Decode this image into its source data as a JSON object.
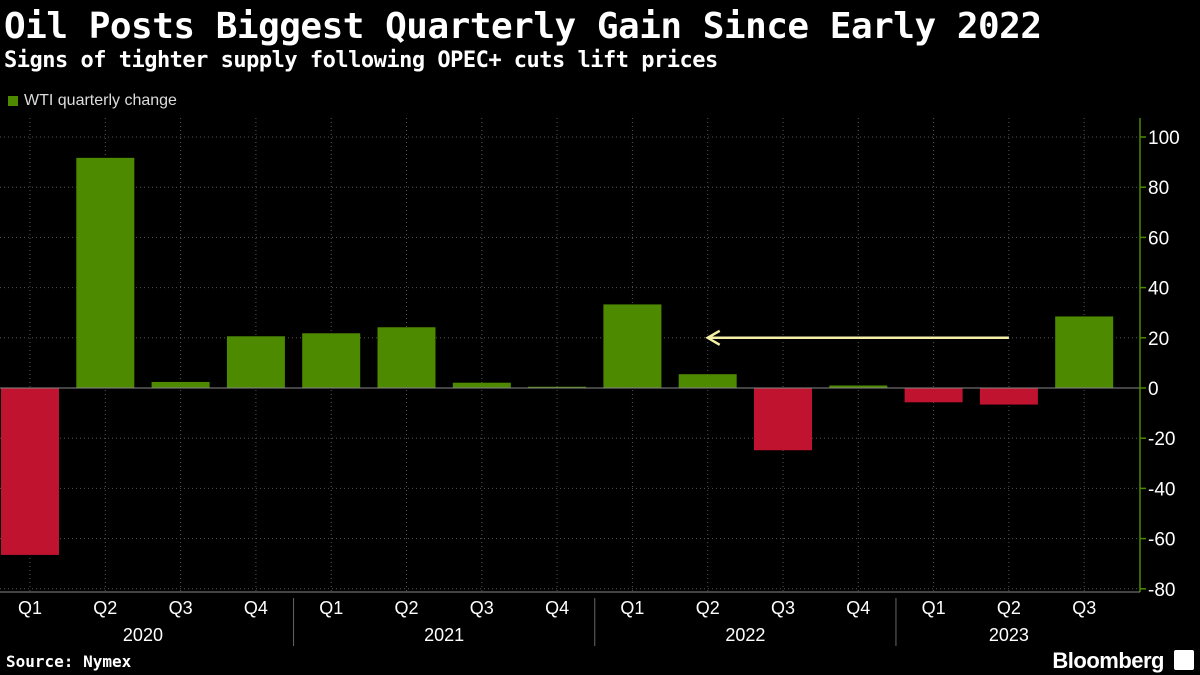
{
  "header": {
    "title": "Oil Posts Biggest Quarterly Gain Since Early 2022",
    "subtitle": "Signs of tighter supply following OPEC+ cuts lift prices"
  },
  "legend": {
    "label": "WTI quarterly change",
    "color": "#4e8a00"
  },
  "footer": {
    "source": "Source: Nymex",
    "brand": "Bloomberg"
  },
  "colors": {
    "positive": "#4e8a00",
    "negative": "#c0132f",
    "arrow": "#f5f0a8",
    "grid": "#555555"
  },
  "chart_data": {
    "type": "bar",
    "categories": [
      "Q1",
      "Q2",
      "Q3",
      "Q4",
      "Q1",
      "Q2",
      "Q3",
      "Q4",
      "Q1",
      "Q2",
      "Q3",
      "Q4",
      "Q1",
      "Q2",
      "Q3"
    ],
    "years": [
      {
        "label": "2020",
        "start": 0,
        "end": 3
      },
      {
        "label": "2021",
        "start": 4,
        "end": 7
      },
      {
        "label": "2022",
        "start": 8,
        "end": 11
      },
      {
        "label": "2023",
        "start": 12,
        "end": 14
      }
    ],
    "values": [
      -66.5,
      91.7,
      2.4,
      20.6,
      21.8,
      24.2,
      2.1,
      0.5,
      33.3,
      5.5,
      -24.8,
      1.0,
      -5.7,
      -6.6,
      28.5
    ],
    "ylim": [
      -80,
      100
    ],
    "yticks": [
      100,
      80,
      60,
      40,
      20,
      0,
      -20,
      -40,
      -60,
      -80
    ],
    "annotation": {
      "type": "arrow",
      "from_index": 13,
      "to_index": 9,
      "value": 20
    }
  }
}
